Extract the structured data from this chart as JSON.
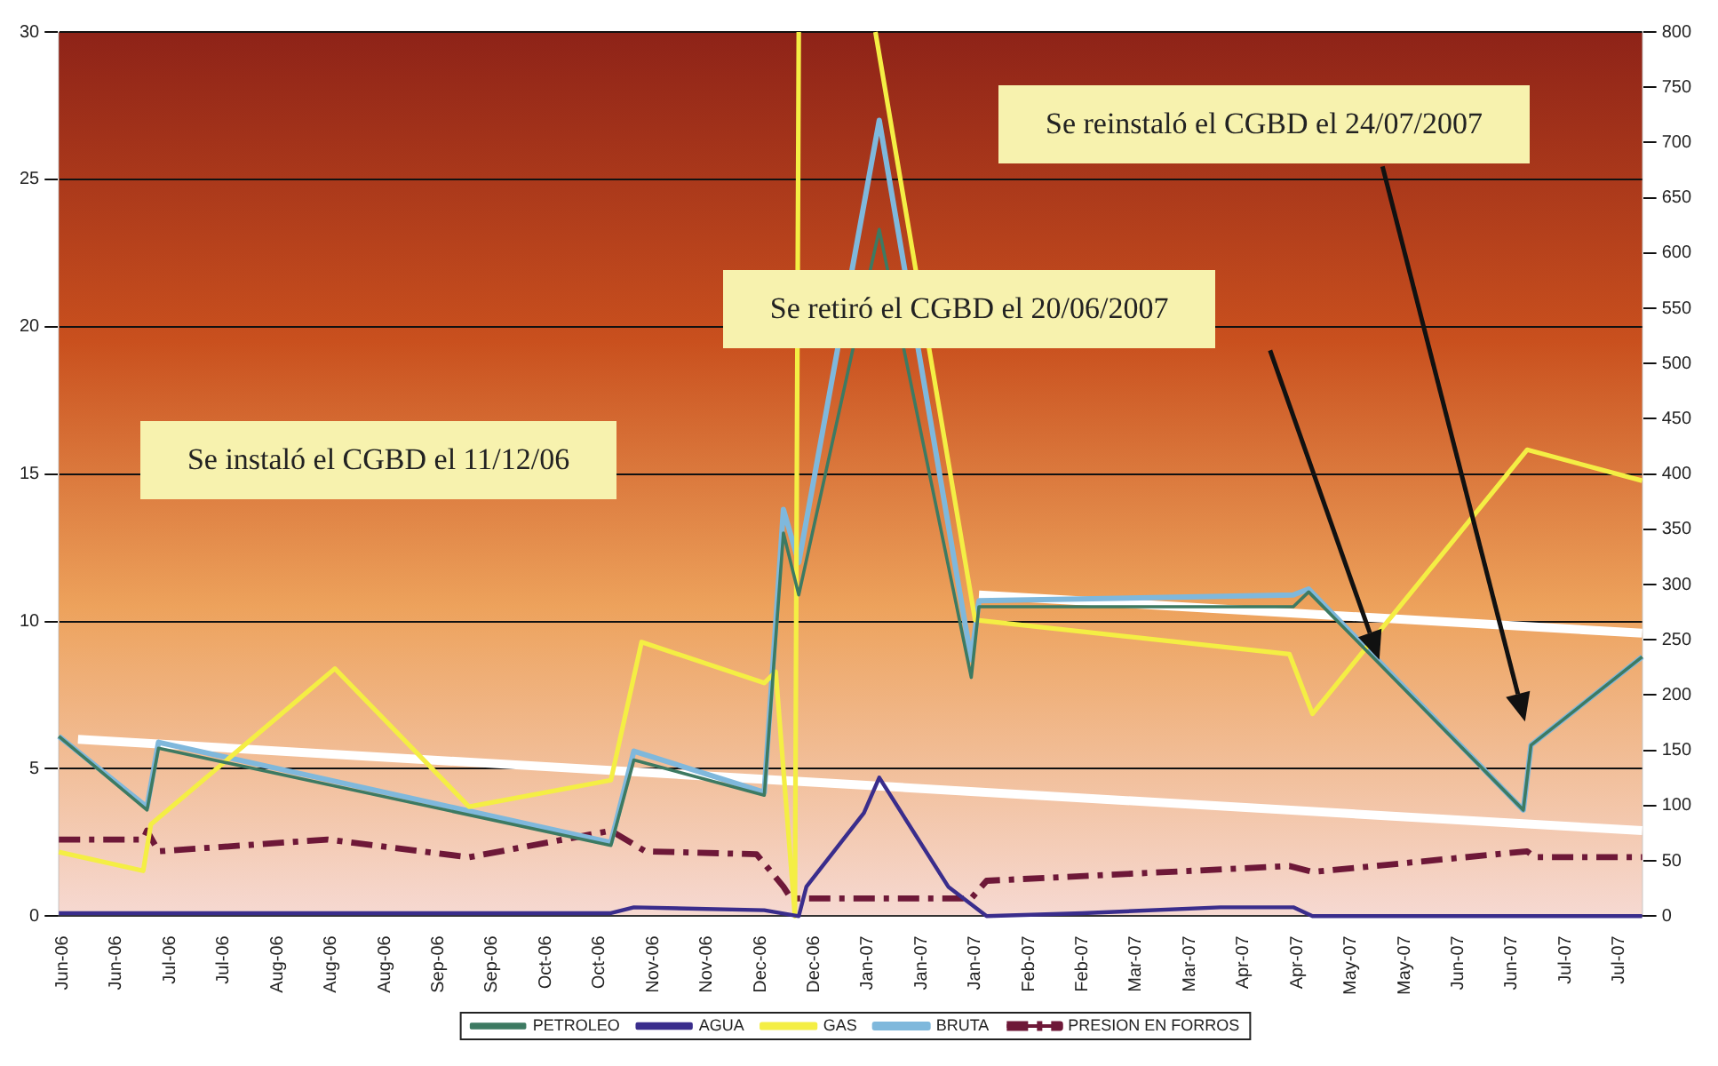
{
  "chart_data": {
    "type": "line",
    "xlim": [
      "2006-06-06",
      "2007-07-24"
    ],
    "xticks": [
      {
        "value": "2006-06-07",
        "label": "Jun-06"
      },
      {
        "value": "2006-06-21",
        "label": "Jun-06"
      },
      {
        "value": "2006-07-05",
        "label": "Jul-06"
      },
      {
        "value": "2006-07-19",
        "label": "Jul-06"
      },
      {
        "value": "2006-08-02",
        "label": "Aug-06"
      },
      {
        "value": "2006-08-16",
        "label": "Aug-06"
      },
      {
        "value": "2006-08-30",
        "label": "Aug-06"
      },
      {
        "value": "2006-09-13",
        "label": "Sep-06"
      },
      {
        "value": "2006-09-27",
        "label": "Sep-06"
      },
      {
        "value": "2006-10-11",
        "label": "Oct-06"
      },
      {
        "value": "2006-10-25",
        "label": "Oct-06"
      },
      {
        "value": "2006-11-08",
        "label": "Nov-06"
      },
      {
        "value": "2006-11-22",
        "label": "Nov-06"
      },
      {
        "value": "2006-12-06",
        "label": "Dec-06"
      },
      {
        "value": "2006-12-20",
        "label": "Dec-06"
      },
      {
        "value": "2007-01-03",
        "label": "Jan-07"
      },
      {
        "value": "2007-01-17",
        "label": "Jan-07"
      },
      {
        "value": "2007-01-31",
        "label": "Jan-07"
      },
      {
        "value": "2007-02-14",
        "label": "Feb-07"
      },
      {
        "value": "2007-02-28",
        "label": "Feb-07"
      },
      {
        "value": "2007-03-14",
        "label": "Mar-07"
      },
      {
        "value": "2007-03-28",
        "label": "Mar-07"
      },
      {
        "value": "2007-04-11",
        "label": "Apr-07"
      },
      {
        "value": "2007-04-25",
        "label": "Apr-07"
      },
      {
        "value": "2007-05-09",
        "label": "May-07"
      },
      {
        "value": "2007-05-23",
        "label": "May-07"
      },
      {
        "value": "2007-06-06",
        "label": "Jun-07"
      },
      {
        "value": "2007-06-20",
        "label": "Jun-07"
      },
      {
        "value": "2007-07-04",
        "label": "Jul-07"
      },
      {
        "value": "2007-07-18",
        "label": "Jul-07"
      }
    ],
    "ylim": [
      0,
      30
    ],
    "yticks": [
      0,
      5,
      10,
      15,
      20,
      25,
      30
    ],
    "y2lim": [
      0,
      800
    ],
    "y2ticks": [
      0,
      50,
      100,
      150,
      200,
      250,
      300,
      350,
      400,
      450,
      500,
      550,
      600,
      650,
      700,
      750,
      800
    ],
    "grid": "y",
    "legend": "bottom",
    "marker": "none",
    "annotations": [
      "Se instaló el CGBD el 11/12/06",
      "Se retiró el CGBD el 20/06/2007",
      "Se reinstaló el CGBD el 24/07/2007"
    ],
    "series": [
      {
        "name": "PETROLEO",
        "color": "#3d7a62",
        "x": [
          "2006-06-06",
          "2006-06-29",
          "2006-07-02",
          "2006-10-28",
          "2006-11-03",
          "2006-12-07",
          "2006-12-12",
          "2006-12-16",
          "2007-01-06",
          "2007-01-30",
          "2007-02-01",
          "2007-04-24",
          "2007-04-28",
          "2007-06-23",
          "2007-06-25",
          "2007-07-24"
        ],
        "values": [
          6.1,
          3.6,
          5.7,
          2.4,
          5.3,
          4.1,
          13.0,
          10.9,
          23.3,
          8.1,
          10.5,
          10.5,
          11.0,
          3.6,
          5.8,
          8.8
        ]
      },
      {
        "name": "AGUA",
        "color": "#3a2d8c",
        "x": [
          "2006-06-06",
          "2006-10-28",
          "2006-11-03",
          "2006-12-07",
          "2006-12-16",
          "2006-12-18",
          "2007-01-02",
          "2007-01-06",
          "2007-01-24",
          "2007-02-03",
          "2007-02-28",
          "2007-04-05",
          "2007-04-24",
          "2007-04-29",
          "2007-07-24"
        ],
        "values": [
          0.1,
          0.1,
          0.3,
          0.2,
          0,
          1.0,
          3.5,
          4.7,
          1.0,
          0,
          0.1,
          0.3,
          0.3,
          0,
          0
        ]
      },
      {
        "name": "GAS",
        "color": "#f4ee44",
        "axis": "y2",
        "x": [
          "2006-06-06",
          "2006-06-28",
          "2006-06-30",
          "2006-08-17",
          "2006-09-21",
          "2006-10-28",
          "2006-11-05",
          "2006-12-07",
          "2006-12-10",
          "2006-12-15",
          "2006-12-16",
          "2006-12-26",
          "2007-01-05",
          "2007-01-31",
          "2007-04-23",
          "2007-04-29",
          "2007-06-24",
          "2007-07-24"
        ],
        "values": [
          58,
          41,
          83,
          224,
          99,
          123,
          248,
          211,
          221,
          0,
          800,
          null,
          800,
          268,
          237,
          183,
          422,
          394
        ]
      },
      {
        "name": "BRUTA",
        "color": "#7fb8dc",
        "x": [
          "2006-06-06",
          "2006-06-29",
          "2006-07-02",
          "2006-10-28",
          "2006-11-03",
          "2006-12-07",
          "2006-12-12",
          "2006-12-16",
          "2007-01-06",
          "2007-01-30",
          "2007-02-01",
          "2007-04-24",
          "2007-04-28",
          "2007-06-23",
          "2007-06-25",
          "2007-07-24"
        ],
        "values": [
          6.1,
          3.7,
          5.9,
          2.5,
          5.6,
          4.2,
          13.8,
          12.0,
          27.0,
          8.7,
          10.7,
          10.9,
          11.1,
          3.6,
          5.8,
          8.8
        ]
      },
      {
        "name": "PRESION EN FORROS",
        "color": "#6e1838",
        "line_style": "dashed",
        "x": [
          "2006-06-06",
          "2006-06-28",
          "2006-06-29",
          "2006-07-02",
          "2006-08-15",
          "2006-09-21",
          "2006-10-28",
          "2006-11-06",
          "2006-12-05",
          "2006-12-12",
          "2006-12-14",
          "2007-01-30",
          "2007-02-03",
          "2007-04-23",
          "2007-04-29",
          "2007-06-24",
          "2007-06-26",
          "2007-07-24"
        ],
        "values": [
          2.6,
          2.6,
          2.9,
          2.2,
          2.6,
          2.0,
          2.9,
          2.2,
          2.1,
          1.0,
          0.6,
          0.6,
          1.2,
          1.7,
          1.5,
          2.2,
          2.0,
          2.0
        ]
      },
      {
        "type": "line",
        "color": "#ffffff",
        "x": [
          "2006-06-11",
          "2007-07-24"
        ],
        "values": [
          6.0,
          2.9
        ]
      },
      {
        "type": "line",
        "color": "#ffffff",
        "x": [
          "2007-02-01",
          "2007-07-24"
        ],
        "values": [
          10.9,
          9.6
        ]
      }
    ]
  }
}
